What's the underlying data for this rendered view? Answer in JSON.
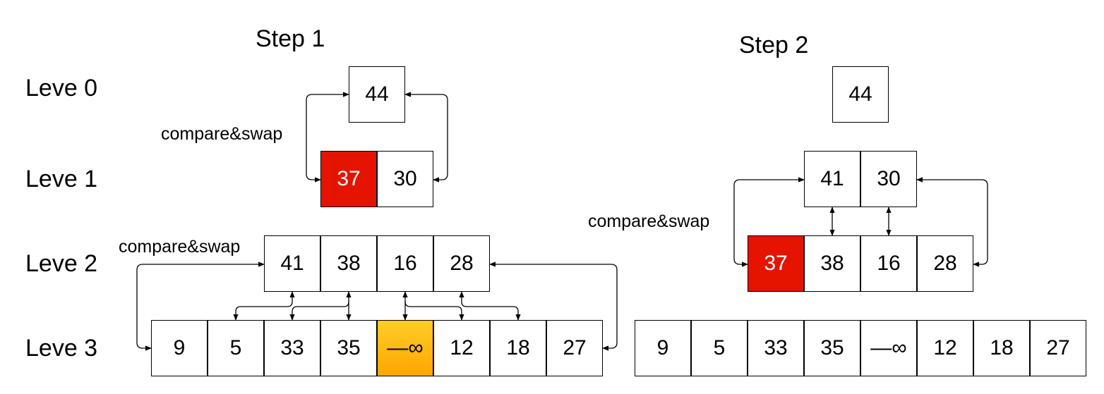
{
  "levels": [
    "Leve 0",
    "Leve 1",
    "Leve 2",
    "Leve 3"
  ],
  "step1": {
    "title": "Step 1",
    "compare_label_upper": "compare&swap",
    "compare_label_lower": "compare&swap",
    "level0": [
      "44"
    ],
    "level1": [
      "37",
      "30"
    ],
    "level2": [
      "41",
      "38",
      "16",
      "28"
    ],
    "level3": [
      "9",
      "5",
      "33",
      "35",
      "—∞",
      "12",
      "18",
      "27"
    ],
    "highlight_color_red": "#e51400",
    "highlight_color_orange": "#ffa500"
  },
  "step2": {
    "title": "Step 2",
    "compare_label": "compare&swap",
    "level0": [
      "44"
    ],
    "level1": [
      "41",
      "30"
    ],
    "level2": [
      "37",
      "38",
      "16",
      "28"
    ],
    "level3": [
      "9",
      "5",
      "33",
      "35",
      "—∞",
      "12",
      "18",
      "27"
    ]
  }
}
